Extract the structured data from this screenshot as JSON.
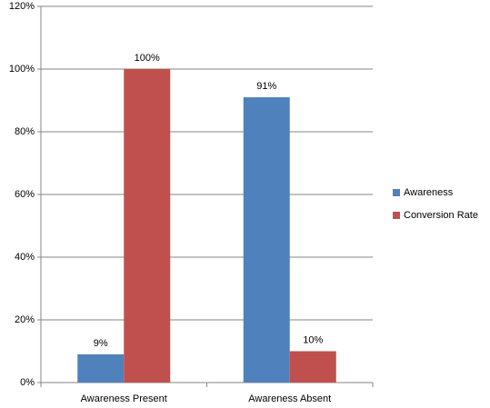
{
  "chart_data": {
    "type": "bar",
    "categories": [
      "Awareness Present",
      "Awareness Absent"
    ],
    "series": [
      {
        "name": "Awareness",
        "color": "#4f81bd",
        "values": [
          9,
          91
        ],
        "value_labels": [
          "9%",
          "91%"
        ]
      },
      {
        "name": "Conversion Rate",
        "color": "#c0504d",
        "values": [
          100,
          10
        ],
        "value_labels": [
          "100%",
          "10%"
        ]
      }
    ],
    "ylim": [
      0,
      120
    ],
    "yticks": [
      {
        "value": 0,
        "label": "0%"
      },
      {
        "value": 20,
        "label": "20%"
      },
      {
        "value": 40,
        "label": "40%"
      },
      {
        "value": 60,
        "label": "60%"
      },
      {
        "value": 80,
        "label": "80%"
      },
      {
        "value": 100,
        "label": "100%"
      },
      {
        "value": 120,
        "label": "120%"
      }
    ],
    "grid": true,
    "legend": "right"
  }
}
